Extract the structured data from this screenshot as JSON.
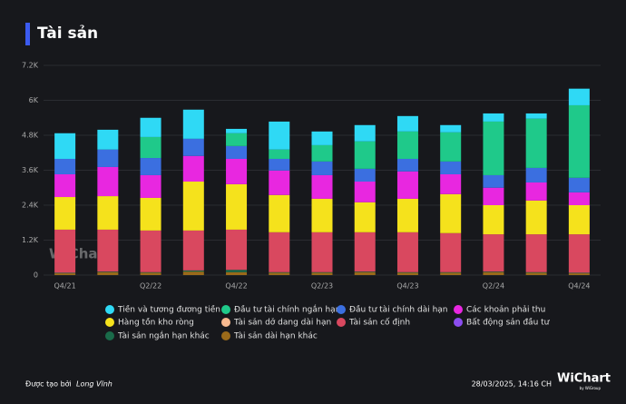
{
  "chart_data": {
    "type": "stacked_bar",
    "title": "Tài sản",
    "watermark": "WiChart",
    "categories": [
      "Q4/21",
      null,
      "Q2/22",
      null,
      "Q4/22",
      null,
      "Q2/23",
      null,
      "Q4/23",
      null,
      "Q2/24",
      null,
      "Q4/24"
    ],
    "ylim": [
      0,
      7200
    ],
    "yticks": [
      0,
      {
        "value": 1200,
        "label": "1.2K"
      },
      {
        "value": 2400,
        "label": "2.4K"
      },
      {
        "value": 3600,
        "label": "3.6K"
      },
      {
        "value": 4800,
        "label": "4.8K"
      },
      {
        "value": 6000,
        "label": "6K"
      },
      {
        "value": 7200,
        "label": "7.2K"
      }
    ],
    "grid": true,
    "series": [
      {
        "name": "Tiền và tương đương tiền",
        "color": "#2fd9f5",
        "values": [
          880,
          680,
          660,
          1000,
          150,
          960,
          470,
          560,
          530,
          250,
          280,
          180,
          570
        ]
      },
      {
        "name": "Đầu tư tài chính ngắn hạn",
        "color": "#1fc98a",
        "values": [
          0,
          0,
          720,
          0,
          440,
          320,
          560,
          940,
          940,
          1000,
          1840,
          1690,
          2490
        ]
      },
      {
        "name": "Đầu tư tài chính dài hạn",
        "color": "#3b6fe0",
        "values": [
          530,
          600,
          590,
          590,
          440,
          400,
          470,
          440,
          430,
          440,
          430,
          500,
          500
        ]
      },
      {
        "name": "Các khoản phải thu",
        "color": "#e827e0",
        "values": [
          780,
          1000,
          780,
          880,
          870,
          840,
          810,
          710,
          940,
          680,
          600,
          620,
          440
        ]
      },
      {
        "name": "Hàng tồn kho ròng",
        "color": "#f5e21c",
        "values": [
          1120,
          1150,
          1120,
          1680,
          1560,
          1280,
          1150,
          1030,
          1150,
          1340,
          1000,
          1160,
          1000
        ]
      },
      {
        "name": "Tài sản dở dang dài hạn",
        "color": "#f7b98f",
        "values": [
          0,
          0,
          0,
          0,
          0,
          0,
          0,
          0,
          0,
          0,
          0,
          0,
          0
        ]
      },
      {
        "name": "Tài sản cố định",
        "color": "#d9485f",
        "values": [
          1480,
          1440,
          1430,
          1370,
          1380,
          1370,
          1370,
          1350,
          1370,
          1340,
          1280,
          1300,
          1320
        ]
      },
      {
        "name": "Bất động sản đầu tư",
        "color": "#8b4df0",
        "values": [
          0,
          0,
          0,
          0,
          0,
          0,
          0,
          0,
          0,
          0,
          0,
          0,
          0
        ]
      },
      {
        "name": "Tài sản ngắn hạn khác",
        "color": "#1a6b4a",
        "values": [
          20,
          20,
          20,
          40,
          80,
          20,
          20,
          20,
          20,
          20,
          20,
          20,
          20
        ]
      },
      {
        "name": "Tài sản dài hạn khác",
        "color": "#9a6a1a",
        "values": [
          60,
          100,
          80,
          120,
          100,
          80,
          80,
          100,
          80,
          80,
          100,
          80,
          60
        ]
      }
    ]
  },
  "footer": {
    "created_by": "Được tạo bởi",
    "author": "Long Vĩnh",
    "timestamp": "28/03/2025, 14:16 CH",
    "logo": "WiChart",
    "logo_sub": "by WiGroup"
  }
}
